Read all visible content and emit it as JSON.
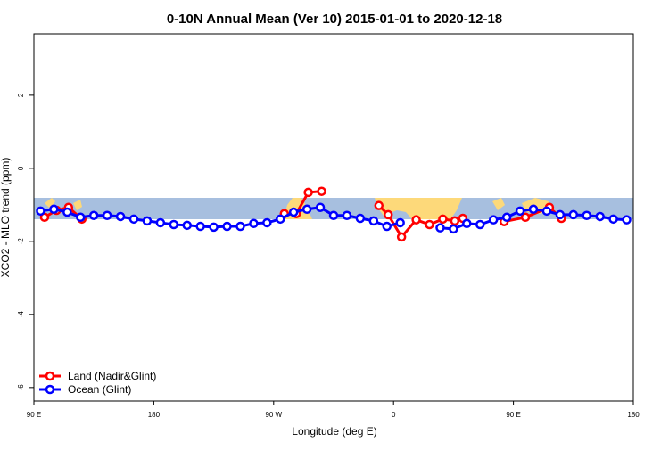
{
  "chart_data": {
    "type": "line",
    "title": "0-10N Annual Mean (Ver 10)   2015-01-01 to 2020-12-18",
    "x_label": "Longitude (deg E)",
    "y_label": "XCO2 - MLO trend (ppm)",
    "xlim": [
      90,
      540
    ],
    "xticks": [
      {
        "value": 90,
        "label": "90 E"
      },
      {
        "value": 180,
        "label": "180"
      },
      {
        "value": 270,
        "label": "90 W"
      },
      {
        "value": 360,
        "label": "0"
      },
      {
        "value": 450,
        "label": "90 E"
      },
      {
        "value": 540,
        "label": "180"
      }
    ],
    "ylim": [
      -6.37,
      3.68
    ],
    "yticks": [
      -6,
      -4,
      -2,
      0,
      2
    ],
    "legend": "bottom-left",
    "series": [
      {
        "name": "Land (Nadir&Glint)",
        "color": "#ff0000",
        "x": [
          98,
          107,
          116,
          126,
          null,
          278,
          287,
          296,
          306,
          null,
          349,
          356,
          366,
          377,
          387,
          397,
          406,
          412,
          null,
          443,
          459,
          477,
          486
        ],
        "values": [
          -1.34,
          -1.15,
          -1.07,
          -1.39,
          null,
          -1.24,
          -1.24,
          -0.66,
          -0.63,
          null,
          -1.02,
          -1.27,
          -1.88,
          -1.41,
          -1.54,
          -1.39,
          -1.44,
          -1.37,
          null,
          -1.46,
          -1.34,
          -1.07,
          -1.37
        ]
      },
      {
        "name": "Ocean (Glint)",
        "color": "#0000ff",
        "x": [
          95,
          105,
          115,
          125,
          135,
          145,
          155,
          165,
          175,
          185,
          195,
          205,
          215,
          225,
          235,
          245,
          255,
          265,
          275,
          285,
          295,
          305,
          315,
          325,
          335,
          345,
          355,
          365,
          375,
          385,
          395,
          405,
          415,
          425,
          435,
          445,
          455,
          465,
          475,
          485,
          495,
          505,
          515,
          525,
          535
        ],
        "values": [
          -1.17,
          -1.12,
          -1.2,
          -1.34,
          -1.29,
          -1.29,
          -1.32,
          -1.39,
          -1.44,
          -1.49,
          -1.54,
          -1.56,
          -1.59,
          -1.61,
          -1.59,
          -1.59,
          -1.51,
          -1.49,
          -1.39,
          -1.2,
          -1.12,
          -1.07,
          -1.29,
          -1.29,
          -1.37,
          -1.44,
          -1.59,
          -1.49,
          null,
          null,
          -1.63,
          -1.66,
          -1.51,
          -1.54,
          -1.41,
          -1.34,
          -1.17,
          -1.12,
          -1.17,
          -1.27,
          -1.27,
          -1.29,
          -1.32,
          -1.39,
          -1.41
        ]
      }
    ]
  }
}
